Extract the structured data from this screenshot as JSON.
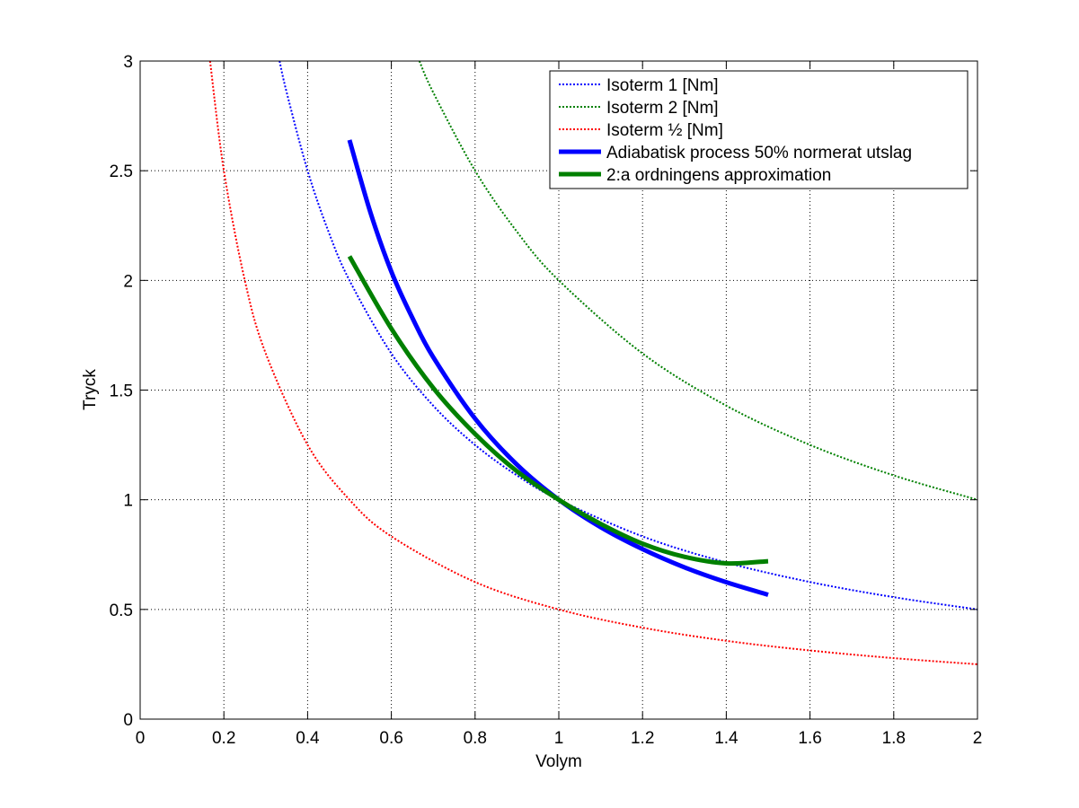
{
  "chart_data": {
    "type": "line",
    "title": "",
    "xlabel": "Volym",
    "ylabel": "Tryck",
    "xlim": [
      0,
      2
    ],
    "ylim": [
      0,
      3
    ],
    "grid": true,
    "legend_position": "top-right",
    "x_ticks": [
      0,
      0.2,
      0.4,
      0.6,
      0.8,
      1,
      1.2,
      1.4,
      1.6,
      1.8,
      2
    ],
    "y_ticks": [
      0,
      0.5,
      1,
      1.5,
      2,
      2.5,
      3
    ],
    "x_tick_labels": [
      "0",
      "0.2",
      "0.4",
      "0.6",
      "0.8",
      "1",
      "1.2",
      "1.4",
      "1.6",
      "1.8",
      "2"
    ],
    "y_tick_labels": [
      "0",
      "0.5",
      "1",
      "1.5",
      "2",
      "2.5",
      "3"
    ],
    "series": [
      {
        "name": "Isoterm 1 [Nm]",
        "color": "#0000ff",
        "style": "dotted",
        "x": [
          0.333,
          0.35,
          0.4,
          0.45,
          0.5,
          0.6,
          0.7,
          0.8,
          0.9,
          1.0,
          1.2,
          1.4,
          1.6,
          1.8,
          2.0
        ],
        "y": [
          3.0,
          2.857,
          2.5,
          2.222,
          2.0,
          1.667,
          1.429,
          1.25,
          1.111,
          1.0,
          0.833,
          0.714,
          0.625,
          0.556,
          0.5
        ]
      },
      {
        "name": "Isoterm 2 [Nm]",
        "color": "#008000",
        "style": "dotted",
        "x": [
          0.667,
          0.7,
          0.8,
          0.9,
          1.0,
          1.2,
          1.4,
          1.6,
          1.8,
          2.0
        ],
        "y": [
          3.0,
          2.857,
          2.5,
          2.222,
          2.0,
          1.667,
          1.429,
          1.25,
          1.111,
          1.0
        ]
      },
      {
        "name": "Isoterm ½ [Nm]",
        "color": "#ff0000",
        "style": "dotted",
        "x": [
          0.167,
          0.2,
          0.25,
          0.3,
          0.4,
          0.5,
          0.6,
          0.8,
          1.0,
          1.2,
          1.4,
          1.6,
          1.8,
          2.0
        ],
        "y": [
          3.0,
          2.5,
          2.0,
          1.667,
          1.25,
          1.0,
          0.833,
          0.625,
          0.5,
          0.417,
          0.357,
          0.313,
          0.278,
          0.25
        ]
      },
      {
        "name": "Adiabatisk process 50% normerat utslag",
        "color": "#0000ff",
        "style": "solid",
        "x": [
          0.5,
          0.55,
          0.6,
          0.65,
          0.7,
          0.8,
          0.9,
          1.0,
          1.1,
          1.2,
          1.3,
          1.4,
          1.5
        ],
        "y": [
          2.64,
          2.31,
          2.04,
          1.83,
          1.65,
          1.37,
          1.16,
          1.0,
          0.875,
          0.775,
          0.692,
          0.624,
          0.567
        ]
      },
      {
        "name": "2:a ordningens approximation",
        "color": "#008000",
        "style": "solid",
        "x": [
          0.5,
          0.6,
          0.7,
          0.8,
          0.9,
          1.0,
          1.1,
          1.2,
          1.3,
          1.4,
          1.5
        ],
        "y": [
          2.11,
          1.78,
          1.51,
          1.3,
          1.13,
          1.0,
          0.89,
          0.8,
          0.74,
          0.71,
          0.72
        ]
      }
    ]
  }
}
